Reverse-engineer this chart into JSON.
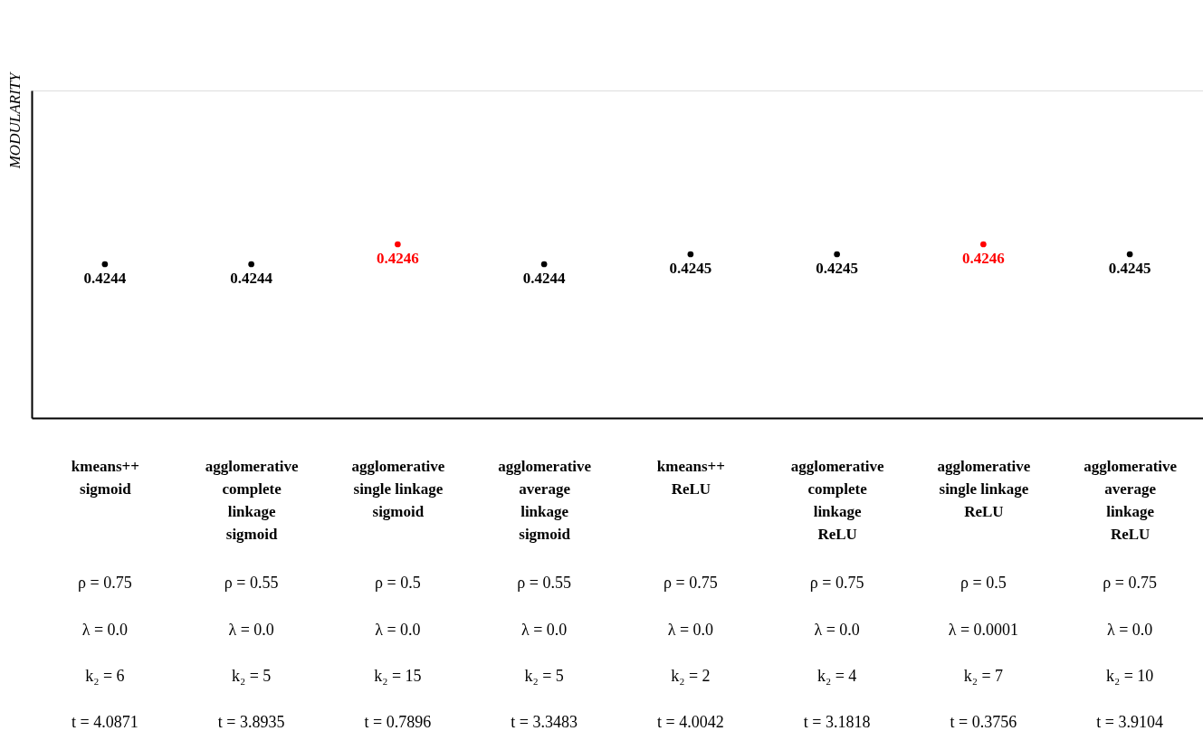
{
  "chart_data": {
    "type": "scatter",
    "ylabel": "MODULARITY",
    "categories": [
      "kmeans++\nsigmoid",
      "agglomerative\ncomplete\nlinkage\nsigmoid",
      "agglomerative\nsingle linkage\nsigmoid",
      "agglomerative\naverage\nlinkage\nsigmoid",
      "kmeans++\nReLU",
      "agglomerative\ncomplete\nlinkage\nReLU",
      "agglomerative\nsingle linkage\nReLU",
      "agglomerative\naverage\nlinkage\nReLU"
    ],
    "values": [
      0.4244,
      0.4244,
      0.4246,
      0.4244,
      0.4245,
      0.4245,
      0.4246,
      0.4245
    ],
    "colors": [
      "#000000",
      "#000000",
      "#ff0000",
      "#000000",
      "#000000",
      "#000000",
      "#ff0000",
      "#000000"
    ],
    "data_labels": true,
    "tick_labels": "x",
    "grid": false,
    "marker": "circle",
    "annotations": [
      "ρ = 0.75",
      "ρ = 0.55",
      "ρ = 0.5",
      "ρ = 0.55",
      "ρ = 0.75",
      "ρ = 0.75",
      "ρ = 0.5",
      "ρ = 0.75",
      "λ = 0.0",
      "λ = 0.0",
      "λ = 0.0",
      "λ = 0.0",
      "λ = 0.0",
      "λ = 0.0",
      "λ = 0.0001",
      "λ = 0.0",
      "k₂ = 6",
      "k₂ = 5",
      "k₂ = 15",
      "k₂ = 5",
      "k₂ = 2",
      "k₂ = 4",
      "k₂ = 7",
      "k₂ = 10",
      "t = 4.0871",
      "t = 3.8935",
      "t = 0.7896",
      "t = 3.3483",
      "t = 4.0042",
      "t = 3.1818",
      "t = 0.3756",
      "t = 3.9104"
    ]
  }
}
